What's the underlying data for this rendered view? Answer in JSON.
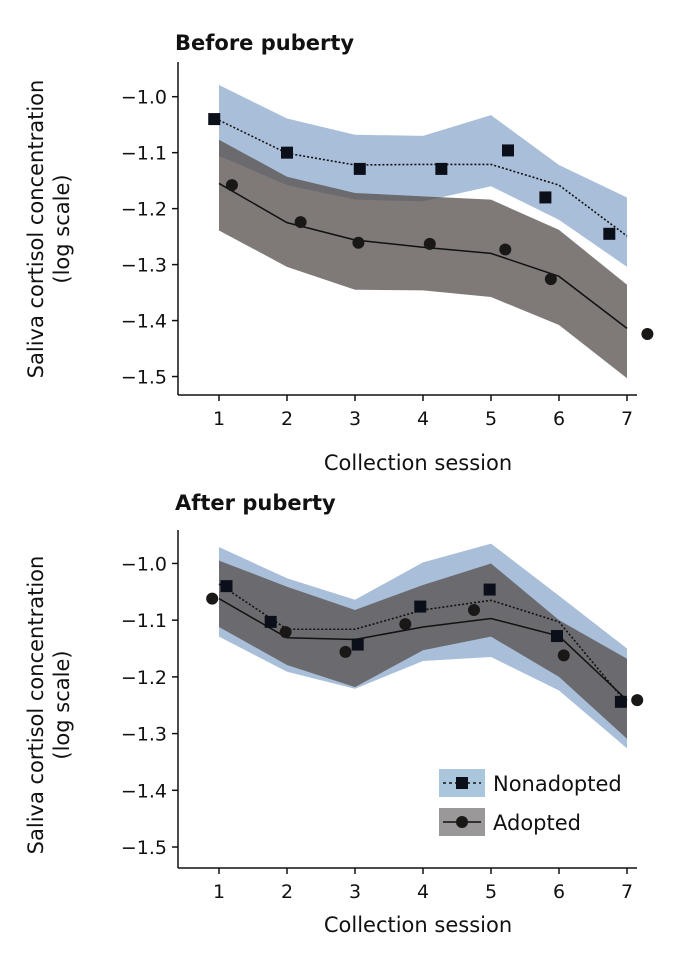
{
  "chart_data": [
    {
      "type": "line",
      "title": "Before puberty",
      "xlabel": "Collection session",
      "ylabel": "Saliva cortisol concentration",
      "ylabel2": "(log scale)",
      "xticks": [
        1,
        2,
        3,
        4,
        5,
        6,
        7
      ],
      "yticks": [
        -1.0,
        -1.1,
        -1.2,
        -1.3,
        -1.4,
        -1.5
      ],
      "xlim": [
        0.4,
        7.15
      ],
      "ylim": [
        -1.533,
        -0.938
      ],
      "grid": false,
      "series": [
        {
          "name": "Nonadopted",
          "color": "#a9bfd9",
          "marker": "square",
          "linestyle": "dotted",
          "line_x": [
            1,
            2,
            3,
            4,
            5,
            6,
            7
          ],
          "line_y": [
            -1.042,
            -1.101,
            -1.122,
            -1.121,
            -1.121,
            -1.158,
            -1.249
          ],
          "band_upper": [
            -0.979,
            -1.039,
            -1.068,
            -1.07,
            -1.033,
            -1.122,
            -1.18
          ],
          "band_lower": [
            -1.106,
            -1.158,
            -1.184,
            -1.187,
            -1.16,
            -1.22,
            -1.304
          ],
          "points_x": [
            0.93,
            2.0,
            3.07,
            4.27,
            5.25,
            5.8,
            6.74
          ],
          "points_y": [
            -1.04,
            -1.1,
            -1.129,
            -1.129,
            -1.096,
            -1.18,
            -1.245
          ]
        },
        {
          "name": "Adopted",
          "color": "#7f7b79",
          "marker": "circle",
          "linestyle": "solid",
          "line_x": [
            1,
            2,
            3,
            4,
            5,
            6,
            7
          ],
          "line_y": [
            -1.155,
            -1.225,
            -1.256,
            -1.269,
            -1.28,
            -1.321,
            -1.414
          ],
          "band_upper": [
            -1.077,
            -1.143,
            -1.172,
            -1.178,
            -1.184,
            -1.238,
            -1.336
          ],
          "band_lower": [
            -1.239,
            -1.304,
            -1.345,
            -1.346,
            -1.358,
            -1.408,
            -1.503
          ],
          "points_x": [
            1.19,
            2.2,
            3.05,
            4.1,
            5.21,
            5.88,
            7.3
          ],
          "points_y": [
            -1.158,
            -1.224,
            -1.261,
            -1.263,
            -1.273,
            -1.326,
            -1.424
          ]
        }
      ]
    },
    {
      "type": "line",
      "title": "After puberty",
      "xlabel": "Collection session",
      "ylabel": "Saliva cortisol concentration",
      "ylabel2": "(log scale)",
      "xticks": [
        1,
        2,
        3,
        4,
        5,
        6,
        7
      ],
      "yticks": [
        -1.0,
        -1.1,
        -1.2,
        -1.3,
        -1.4,
        -1.5
      ],
      "xlim": [
        0.4,
        7.15
      ],
      "ylim": [
        -1.537,
        -0.941
      ],
      "grid": false,
      "legend": "bottom-right",
      "series": [
        {
          "name": "Nonadopted",
          "color": "#a9bfd9",
          "marker": "square",
          "linestyle": "dotted",
          "line_x": [
            1,
            2,
            3,
            4,
            5,
            6,
            7
          ],
          "line_y": [
            -1.036,
            -1.116,
            -1.116,
            -1.082,
            -1.065,
            -1.103,
            -1.247
          ],
          "band_upper": [
            -0.971,
            -1.026,
            -1.064,
            -0.998,
            -0.965,
            -1.057,
            -1.15
          ],
          "band_lower": [
            -1.129,
            -1.191,
            -1.221,
            -1.172,
            -1.165,
            -1.224,
            -1.326
          ],
          "points_x": [
            1.11,
            1.76,
            3.04,
            3.96,
            4.98,
            5.97,
            6.91
          ],
          "points_y": [
            -1.04,
            -1.103,
            -1.143,
            -1.076,
            -1.046,
            -1.128,
            -1.244
          ]
        },
        {
          "name": "Adopted",
          "color": "#7f7b79",
          "marker": "circle",
          "linestyle": "solid",
          "line_x": [
            1,
            2,
            3,
            4,
            5,
            6,
            7
          ],
          "line_y": [
            -1.062,
            -1.131,
            -1.134,
            -1.112,
            -1.097,
            -1.128,
            -1.241
          ],
          "band_upper": [
            -0.995,
            -1.041,
            -1.082,
            -1.038,
            -1.0,
            -1.1,
            -1.168
          ],
          "band_lower": [
            -1.112,
            -1.179,
            -1.218,
            -1.153,
            -1.129,
            -1.2,
            -1.309
          ],
          "points_x": [
            0.9,
            1.98,
            2.86,
            3.74,
            4.75,
            6.07,
            7.15
          ],
          "points_y": [
            -1.062,
            -1.121,
            -1.156,
            -1.107,
            -1.082,
            -1.162,
            -1.241
          ]
        }
      ]
    }
  ]
}
